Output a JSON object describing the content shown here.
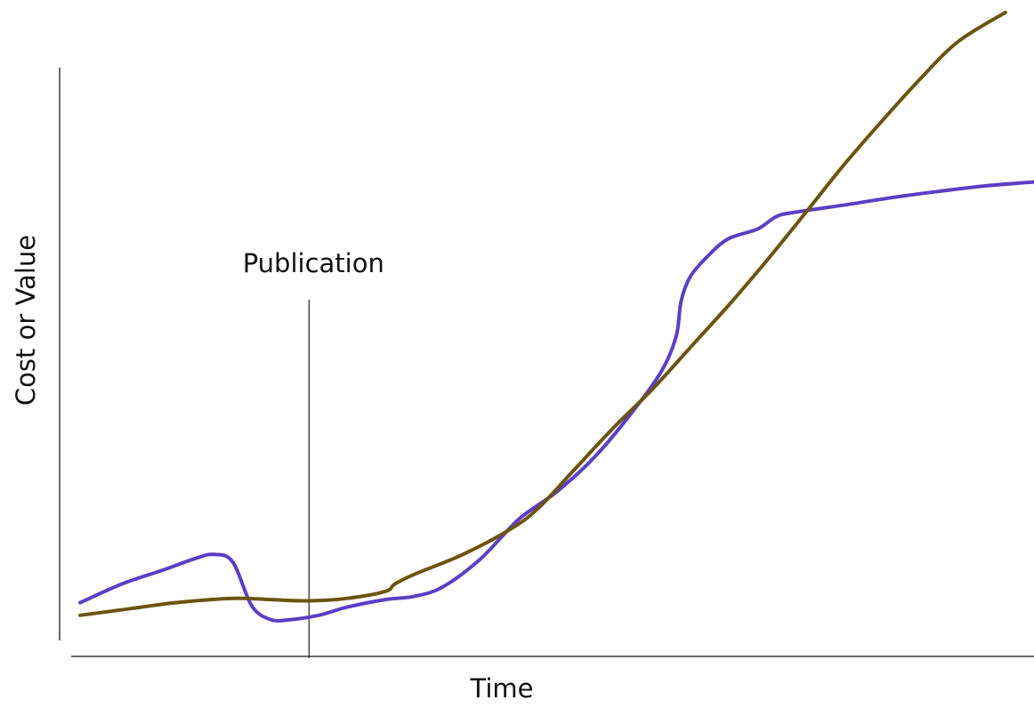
{
  "chart_data": {
    "type": "line",
    "title": "",
    "xlabel": "Time",
    "ylabel": "Cost or Value",
    "xlim": [
      0,
      100
    ],
    "ylim": [
      0,
      100
    ],
    "grid": false,
    "legend": "none",
    "annotations": [
      {
        "label": "Publication",
        "x": 24
      }
    ],
    "series": [
      {
        "color": "#5b3fc4",
        "points": [
          [
            0,
            6
          ],
          [
            4.4,
            9
          ],
          [
            8.7,
            11.2
          ],
          [
            12,
            13
          ],
          [
            14,
            13.7
          ],
          [
            16,
            12.5
          ],
          [
            18,
            5.5
          ],
          [
            20,
            3.3
          ],
          [
            22,
            3.3
          ],
          [
            25,
            4
          ],
          [
            28,
            5.3
          ],
          [
            32,
            6.5
          ],
          [
            35,
            7
          ],
          [
            38,
            8.5
          ],
          [
            42,
            13
          ],
          [
            46,
            19.3
          ],
          [
            50,
            23.7
          ],
          [
            54,
            29.3
          ],
          [
            58,
            36.6
          ],
          [
            61,
            43
          ],
          [
            62.5,
            48.5
          ],
          [
            63,
            54
          ],
          [
            64,
            58
          ],
          [
            66,
            61.5
          ],
          [
            68,
            64
          ],
          [
            71,
            65.5
          ],
          [
            73,
            67.5
          ],
          [
            75,
            68.2
          ],
          [
            80,
            69.3
          ],
          [
            85,
            70.5
          ],
          [
            90,
            71.5
          ],
          [
            95,
            72.4
          ],
          [
            100,
            73
          ]
        ]
      },
      {
        "color": "#6b5410",
        "points": [
          [
            0,
            4
          ],
          [
            5,
            5
          ],
          [
            10,
            6
          ],
          [
            16,
            6.7
          ],
          [
            20,
            6.5
          ],
          [
            24,
            6.3
          ],
          [
            28,
            6.7
          ],
          [
            32,
            7.8
          ],
          [
            33,
            9
          ],
          [
            35,
            10.5
          ],
          [
            40,
            13.6
          ],
          [
            45,
            17.6
          ],
          [
            48,
            21
          ],
          [
            52,
            27.5
          ],
          [
            56,
            34
          ],
          [
            60,
            40
          ],
          [
            64,
            46.7
          ],
          [
            68,
            53.4
          ],
          [
            72,
            60.5
          ],
          [
            76,
            68
          ],
          [
            80,
            75.6
          ],
          [
            84,
            82.6
          ],
          [
            88,
            89.3
          ],
          [
            92,
            95.3
          ],
          [
            97,
            100
          ]
        ]
      }
    ]
  }
}
